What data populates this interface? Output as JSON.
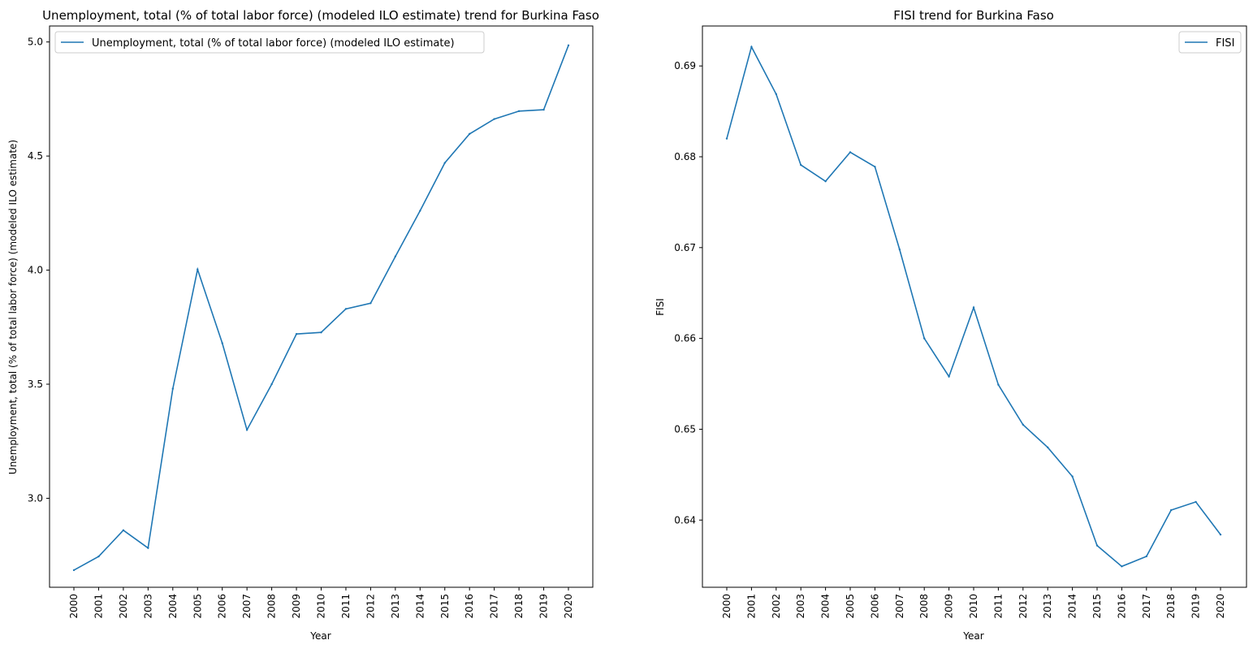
{
  "chart_data": [
    {
      "type": "line",
      "title": "Unemployment, total (% of total labor force) (modeled ILO estimate) trend for Burkina Faso",
      "xlabel": "Year",
      "ylabel": "Unemployment, total (% of total labor force) (modeled ILO estimate)",
      "x": [
        "2000",
        "2001",
        "2002",
        "2003",
        "2004",
        "2005",
        "2006",
        "2007",
        "2008",
        "2009",
        "2010",
        "2011",
        "2012",
        "2013",
        "2014",
        "2015",
        "2016",
        "2017",
        "2018",
        "2019",
        "2020"
      ],
      "series": [
        {
          "name": "Unemployment, total (% of total labor force) (modeled ILO estimate)",
          "values": [
            2.685,
            2.745,
            2.86,
            2.782,
            3.48,
            4.003,
            3.68,
            3.3,
            3.5,
            3.72,
            3.727,
            3.83,
            3.855,
            4.06,
            4.26,
            4.47,
            4.597,
            4.662,
            4.697,
            4.703,
            4.985
          ],
          "color": "#1f77b4"
        }
      ],
      "ylim": [
        2.61,
        5.07
      ],
      "yticks": [
        3.0,
        3.5,
        4.0,
        4.5,
        5.0
      ],
      "ytick_labels": [
        "3.0",
        "3.5",
        "4.0",
        "4.5",
        "5.0"
      ],
      "legend": "top-left",
      "grid": false
    },
    {
      "type": "line",
      "title": "FISI trend for Burkina Faso",
      "xlabel": "Year",
      "ylabel": "FISI",
      "x": [
        "2000",
        "2001",
        "2002",
        "2003",
        "2004",
        "2005",
        "2006",
        "2007",
        "2008",
        "2009",
        "2010",
        "2011",
        "2012",
        "2013",
        "2014",
        "2015",
        "2016",
        "2017",
        "2018",
        "2019",
        "2020"
      ],
      "series": [
        {
          "name": "FISI",
          "values": [
            0.682,
            0.6921,
            0.6869,
            0.6791,
            0.6773,
            0.6805,
            0.6789,
            0.6698,
            0.66,
            0.6558,
            0.6634,
            0.6549,
            0.6505,
            0.648,
            0.6448,
            0.6372,
            0.6349,
            0.636,
            0.6411,
            0.642,
            0.6384
          ],
          "color": "#1f77b4"
        }
      ],
      "ylim": [
        0.6326,
        0.6944
      ],
      "yticks": [
        0.64,
        0.65,
        0.66,
        0.67,
        0.68,
        0.69
      ],
      "ytick_labels": [
        "0.64",
        "0.65",
        "0.66",
        "0.67",
        "0.68",
        "0.69"
      ],
      "legend": "top-right",
      "grid": false
    }
  ]
}
